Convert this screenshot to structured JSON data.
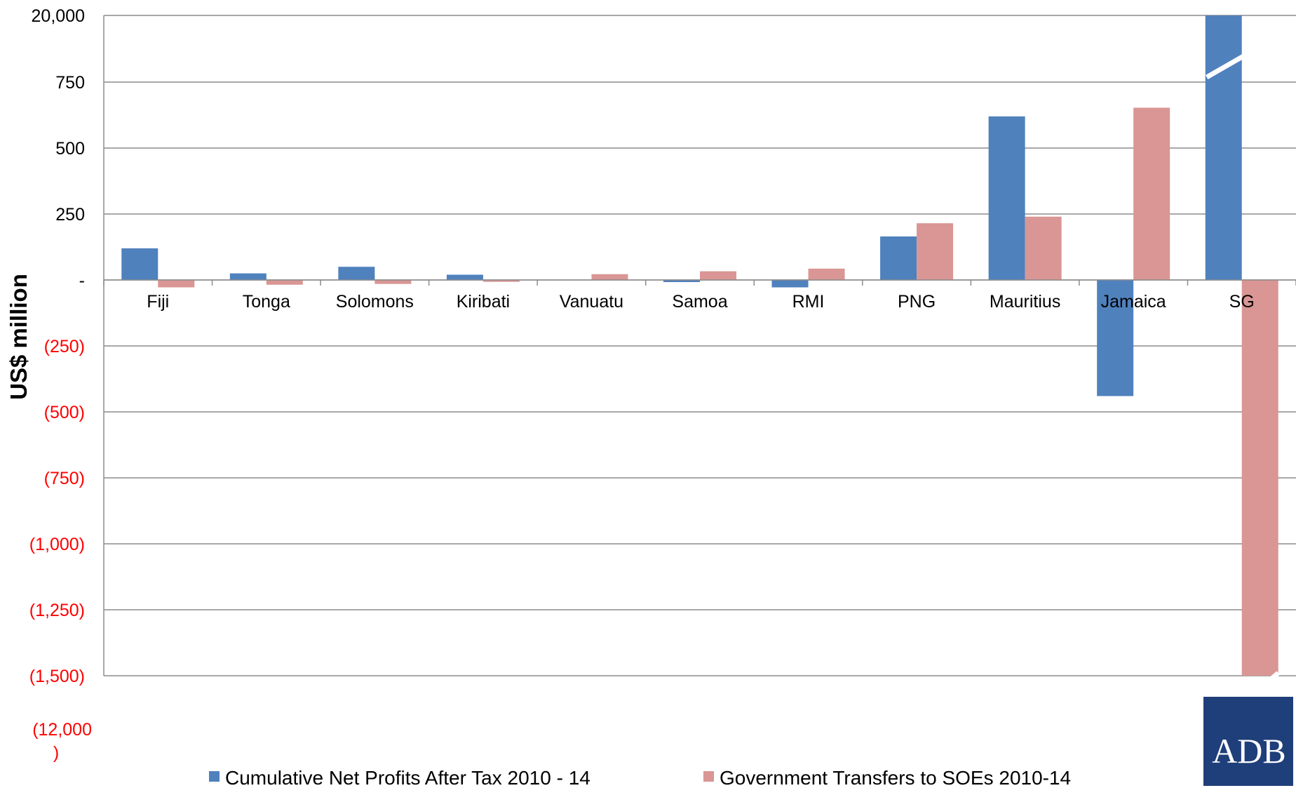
{
  "chart_data": {
    "type": "bar",
    "ylabel": "US$ million",
    "categories": [
      "Fiji",
      "Tonga",
      "Solomons",
      "Kiribati",
      "Vanuatu",
      "Samoa",
      "RMI",
      "PNG",
      "Mauritius",
      "Jamaica",
      "SG"
    ],
    "series": [
      {
        "name": "Cumulative Net Profits After Tax 2010 - 14",
        "color": "#4F81BD",
        "values": [
          120,
          25,
          50,
          20,
          0,
          -8,
          -28,
          165,
          620,
          -440,
          20000
        ]
      },
      {
        "name": "Government Transfers to SOEs 2010-14",
        "color": "#D99694",
        "values": [
          -28,
          -18,
          -15,
          -7,
          22,
          33,
          43,
          215,
          240,
          653,
          -12000
        ]
      }
    ],
    "y_ticks": [
      {
        "value": 20000,
        "label": "20,000",
        "color": "#000000"
      },
      {
        "value": 750,
        "label": "750",
        "color": "#000000"
      },
      {
        "value": 500,
        "label": "500",
        "color": "#000000"
      },
      {
        "value": 250,
        "label": "250",
        "color": "#000000"
      },
      {
        "value": 0,
        "label": "-",
        "color": "#000000"
      },
      {
        "value": -250,
        "label": "(250)",
        "color": "#FF0000"
      },
      {
        "value": -500,
        "label": "(500)",
        "color": "#FF0000"
      },
      {
        "value": -750,
        "label": "(750)",
        "color": "#FF0000"
      },
      {
        "value": -1000,
        "label": "(1,000)",
        "color": "#FF0000"
      },
      {
        "value": -1250,
        "label": "(1,250)",
        "color": "#FF0000"
      },
      {
        "value": -1500,
        "label": "(1,500)",
        "color": "#FF0000"
      }
    ],
    "broken_axis_label": [
      "(12,000",
      ")"
    ],
    "axis_break": "top segment 750–20,000 and bottom segment below -1,500 are compressed",
    "grid": true,
    "legend_position": "bottom"
  },
  "logo": {
    "text": "ADB",
    "bg_color": "#1F3F7A"
  }
}
